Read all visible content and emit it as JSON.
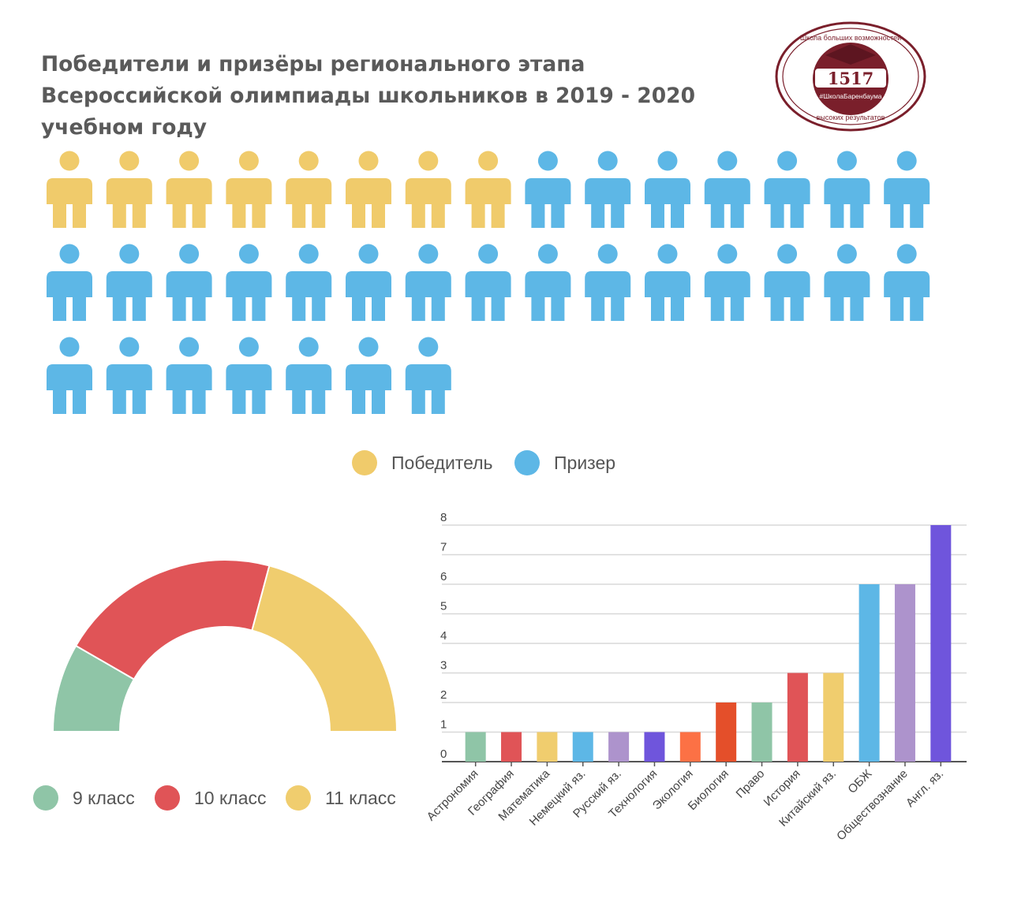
{
  "title": "Победители и призёры регионального этапа Всероссийской олимпиады школьников в 2019 - 2020 учебном году",
  "logo": {
    "number": "1517",
    "top_text": "Школа больших возможностей",
    "hashtag": "#ШколаБаренбаума",
    "bottom_text": "высоких результатов",
    "color": "#7a1f2b"
  },
  "pictogram": {
    "winners": 8,
    "prizers": 29,
    "per_row": 15,
    "winner_color": "#f0cb6b",
    "prizer_color": "#5db7e6",
    "legend": [
      {
        "label": "Победитель",
        "color": "#f0cb6b"
      },
      {
        "label": "Призер",
        "color": "#5db7e6"
      }
    ]
  },
  "chart_data": [
    {
      "type": "pie",
      "variant": "semicircle",
      "slices": [
        {
          "label": "9 класс",
          "value": 4,
          "color": "#8fc5a7"
        },
        {
          "label": "10 класс",
          "value": 10,
          "color": "#e05457"
        },
        {
          "label": "11 класс",
          "value": 10,
          "color": "#f0cd6e"
        }
      ],
      "legend": [
        {
          "label": "9 класс",
          "color": "#8fc5a7"
        },
        {
          "label": "10 класс",
          "color": "#e05457"
        },
        {
          "label": "11 класс",
          "color": "#f0cd6e"
        }
      ]
    },
    {
      "type": "bar",
      "categories": [
        "Астрономия",
        "География",
        "Математика",
        "Немецкий яз.",
        "Русский яз.",
        "Технология",
        "Экология",
        "Биология",
        "Право",
        "История",
        "Китайский яз.",
        "ОБЖ",
        "Обществознание",
        "Англ. яз."
      ],
      "values": [
        1,
        1,
        1,
        1,
        1,
        1,
        1,
        2,
        2,
        3,
        3,
        6,
        6,
        8
      ],
      "colors": [
        "#8fc5a7",
        "#e05457",
        "#f0cd6e",
        "#5db7e6",
        "#ad93cc",
        "#6f55dc",
        "#fc7145",
        "#e44f2a",
        "#8fc5a7",
        "#e05457",
        "#f0cd6e",
        "#5db7e6",
        "#ad93cc",
        "#6f55dc"
      ],
      "y_ticks": [
        "0",
        "1",
        "2",
        "3",
        "4",
        "5",
        "6",
        "7",
        "8"
      ],
      "ylim": [
        0,
        8
      ],
      "grid": true
    }
  ]
}
